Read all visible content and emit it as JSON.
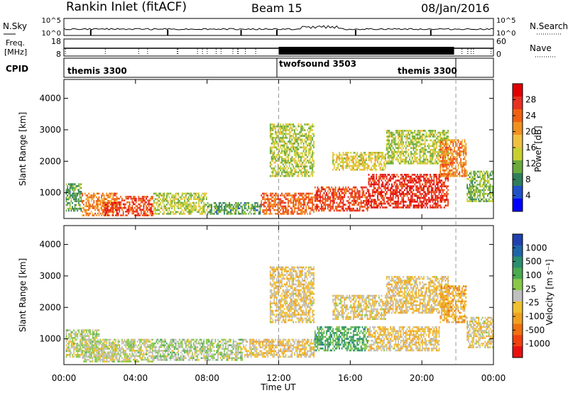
{
  "header": {
    "station": "Rankin Inlet (fitACF)",
    "beam": "Beam 15",
    "date": "08/Jan/2016"
  },
  "panels": {
    "nsky": {
      "label": "N.Sky",
      "ticks": [
        "10^5",
        "10^0"
      ]
    },
    "nsearch": {
      "label": "N.Search",
      "ticks": [
        "10^5",
        "10^0"
      ]
    },
    "freq": {
      "label_line1": "Freq.",
      "label_line2": "[MHz]",
      "ticks": [
        "18",
        "8"
      ]
    },
    "nave": {
      "label": "Nave",
      "ticks": [
        "60",
        "0"
      ]
    },
    "cpid": {
      "label": "CPID",
      "modes": [
        "themis 3300",
        "twofsound 3503",
        "themis 3300"
      ]
    }
  },
  "axes": {
    "xlabel": "Time UT",
    "ylabel": "Slant Range [km]",
    "x_ticks": [
      "00:00",
      "04:00",
      "08:00",
      "12:00",
      "16:00",
      "20:00",
      "00:00"
    ],
    "y_ticks": [
      "1000",
      "2000",
      "3000",
      "4000"
    ]
  },
  "colorbars": {
    "power": {
      "label": "Power [dB]",
      "ticks": [
        "4",
        "8",
        "12",
        "16",
        "20",
        "24",
        "28"
      ],
      "colors": [
        "#0000ff",
        "#1e50c8",
        "#2e7e5a",
        "#6aaa3c",
        "#c8d030",
        "#f0c040",
        "#f09020",
        "#f06010",
        "#e83020",
        "#e00000"
      ]
    },
    "velocity": {
      "label": "Velocity [m s⁻¹]",
      "ticks": [
        "1000",
        "500",
        "100",
        "25",
        "-25",
        "-100",
        "-500",
        "-1000"
      ],
      "colors": [
        "#2040b0",
        "#1e66a8",
        "#2a8e6e",
        "#4aaa50",
        "#88c848",
        "#c0c0c0",
        "#f0c030",
        "#f0a020",
        "#f07010",
        "#f04010",
        "#e81010"
      ]
    }
  },
  "chart_data": [
    {
      "type": "heatmap",
      "title": "Power",
      "xlabel": "Time UT",
      "ylabel": "Slant Range [km]",
      "xlim": [
        0,
        24
      ],
      "ylim": [
        180,
        4600
      ],
      "colorbar": {
        "label": "Power [dB]",
        "range": [
          0,
          32
        ]
      },
      "regions": [
        {
          "t0": 0.1,
          "t1": 1.0,
          "r0": 400,
          "r1": 1300,
          "value": 10
        },
        {
          "t0": 1.0,
          "t1": 3.0,
          "r0": 250,
          "r1": 1000,
          "value": 22
        },
        {
          "t0": 2.2,
          "t1": 3.0,
          "r0": 250,
          "r1": 700,
          "value": 28
        },
        {
          "t0": 3.0,
          "t1": 5.0,
          "r0": 250,
          "r1": 900,
          "value": 26
        },
        {
          "t0": 5.0,
          "t1": 8.0,
          "r0": 300,
          "r1": 1000,
          "value": 14
        },
        {
          "t0": 8.0,
          "t1": 11.0,
          "r0": 300,
          "r1": 700,
          "value": 10
        },
        {
          "t0": 11.0,
          "t1": 14.0,
          "r0": 300,
          "r1": 1000,
          "value": 24
        },
        {
          "t0": 11.5,
          "t1": 14.0,
          "r0": 1500,
          "r1": 3200,
          "value": 14
        },
        {
          "t0": 14.0,
          "t1": 17.0,
          "r0": 400,
          "r1": 1200,
          "value": 26
        },
        {
          "t0": 15.0,
          "t1": 18.0,
          "r0": 1700,
          "r1": 2300,
          "value": 16
        },
        {
          "t0": 17.0,
          "t1": 21.5,
          "r0": 500,
          "r1": 1600,
          "value": 28
        },
        {
          "t0": 18.0,
          "t1": 21.5,
          "r0": 1900,
          "r1": 3000,
          "value": 14
        },
        {
          "t0": 21.0,
          "t1": 22.5,
          "r0": 1500,
          "r1": 2700,
          "value": 22
        },
        {
          "t0": 22.5,
          "t1": 24.0,
          "r0": 700,
          "r1": 1700,
          "value": 12
        }
      ]
    },
    {
      "type": "heatmap",
      "title": "Velocity",
      "xlabel": "Time UT",
      "ylabel": "Slant Range [km]",
      "xlim": [
        0,
        24
      ],
      "ylim": [
        180,
        4600
      ],
      "colorbar": {
        "label": "Velocity [m s⁻¹]",
        "range": [
          -1000,
          1000
        ]
      },
      "regions": [
        {
          "t0": 0.1,
          "t1": 2.0,
          "r0": 400,
          "r1": 1300,
          "value": 50
        },
        {
          "t0": 1.0,
          "t1": 5.0,
          "r0": 250,
          "r1": 1000,
          "value": 30
        },
        {
          "t0": 2.0,
          "t1": 3.0,
          "r0": 300,
          "r1": 900,
          "value": 0
        },
        {
          "t0": 5.0,
          "t1": 10.0,
          "r0": 300,
          "r1": 1000,
          "value": 100
        },
        {
          "t0": 10.0,
          "t1": 14.0,
          "r0": 400,
          "r1": 1000,
          "value": -150
        },
        {
          "t0": 11.5,
          "t1": 14.0,
          "r0": 1500,
          "r1": 3300,
          "value": -150
        },
        {
          "t0": 14.0,
          "t1": 17.0,
          "r0": 600,
          "r1": 1400,
          "value": 400
        },
        {
          "t0": 15.0,
          "t1": 18.0,
          "r0": 1600,
          "r1": 2400,
          "value": -100
        },
        {
          "t0": 17.0,
          "t1": 21.0,
          "r0": 600,
          "r1": 1400,
          "value": -150
        },
        {
          "t0": 18.0,
          "t1": 21.5,
          "r0": 1800,
          "r1": 3000,
          "value": -150
        },
        {
          "t0": 21.0,
          "t1": 22.5,
          "r0": 1500,
          "r1": 2700,
          "value": -300
        },
        {
          "t0": 22.5,
          "t1": 24.0,
          "r0": 700,
          "r1": 1700,
          "value": -100
        }
      ]
    }
  ]
}
